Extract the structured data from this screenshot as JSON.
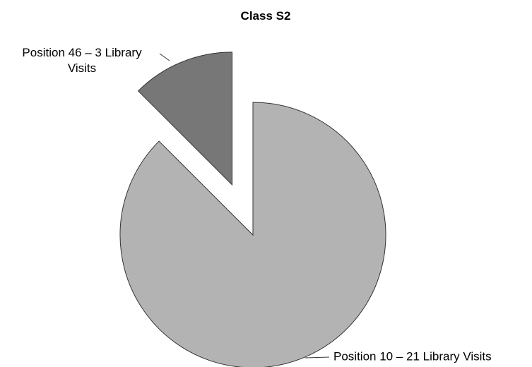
{
  "chart_data": {
    "type": "pie",
    "title": "Class S2",
    "categories": [
      "Position 10 – 21 Library Visits",
      "Position 46 – 3 Library Visits"
    ],
    "values": [
      21,
      3
    ],
    "colors": [
      "#b3b3b3",
      "#777777"
    ]
  }
}
